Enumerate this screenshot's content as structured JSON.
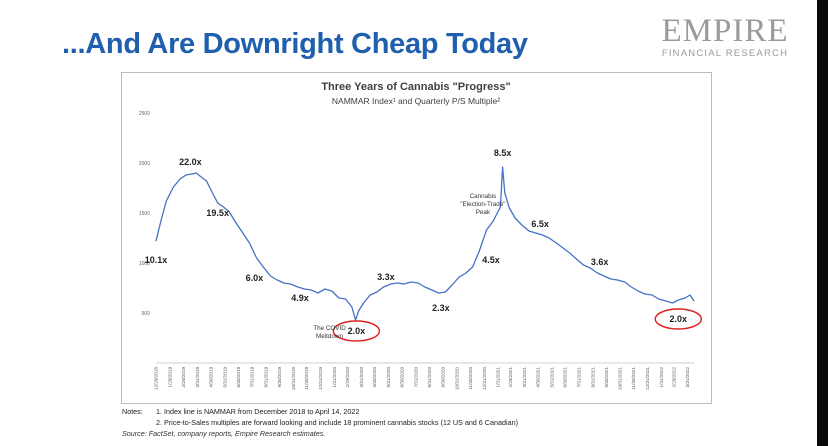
{
  "slide": {
    "title": "...And Are Downright Cheap Today",
    "brand_name": "EMPIRE",
    "brand_sub": "FINANCIAL RESEARCH",
    "notes_label": "Notes:",
    "notes": [
      "1. Index line is NAMMAR from December 2018 to April 14, 2022",
      "2. Price-to-Sales multiples are forward looking and include 18 prominent cannabis stocks (12 US and 6 Canadian)"
    ],
    "source": "Source: FactSet, company reports, Empire Research estimates."
  },
  "chart_data": {
    "type": "line",
    "title": "Three Years of Cannabis \"Progress\"",
    "subtitle": "NAMMAR Index¹ and Quarterly P/S Multiple²",
    "ylim": [
      0,
      2500
    ],
    "yticks": [
      500,
      1000,
      1500,
      2000,
      2500
    ],
    "xlim": [
      "2018-12-28",
      "2022-04-14"
    ],
    "xticks": [
      "12/28/2018",
      "1/28/2019",
      "2/28/2019",
      "3/31/2019",
      "4/30/2019",
      "5/31/2019",
      "6/30/2019",
      "7/31/2019",
      "8/31/2019",
      "9/30/2019",
      "10/31/2019",
      "11/30/2019",
      "12/31/2019",
      "1/31/2020",
      "2/29/2020",
      "3/31/2020",
      "4/30/2020",
      "5/31/2020",
      "6/30/2020",
      "7/31/2020",
      "8/31/2020",
      "9/30/2020",
      "10/31/2020",
      "11/30/2020",
      "12/31/2020",
      "1/31/2021",
      "2/28/2021",
      "3/31/2021",
      "4/30/2021",
      "5/31/2021",
      "6/30/2021",
      "7/31/2021",
      "8/31/2021",
      "9/30/2021",
      "10/31/2021",
      "11/30/2021",
      "12/31/2021",
      "1/31/2022",
      "2/28/2022",
      "3/31/2022"
    ],
    "series": [
      {
        "color": "#4472c4",
        "x": [
          "2018-12-28",
          "2019-01-08",
          "2019-01-20",
          "2019-02-05",
          "2019-02-20",
          "2019-03-05",
          "2019-03-18",
          "2019-03-28",
          "2019-04-08",
          "2019-04-20",
          "2019-05-01",
          "2019-05-15",
          "2019-05-28",
          "2019-06-10",
          "2019-06-25",
          "2019-07-10",
          "2019-07-25",
          "2019-08-10",
          "2019-08-25",
          "2019-09-10",
          "2019-09-25",
          "2019-10-10",
          "2019-10-25",
          "2019-11-10",
          "2019-11-25",
          "2019-12-10",
          "2019-12-25",
          "2020-01-10",
          "2020-01-25",
          "2020-02-10",
          "2020-02-25",
          "2020-03-10",
          "2020-03-18",
          "2020-03-25",
          "2020-04-05",
          "2020-04-20",
          "2020-05-05",
          "2020-05-20",
          "2020-06-05",
          "2020-06-20",
          "2020-07-05",
          "2020-07-20",
          "2020-08-05",
          "2020-08-20",
          "2020-09-05",
          "2020-09-20",
          "2020-10-05",
          "2020-10-20",
          "2020-11-05",
          "2020-11-20",
          "2020-12-05",
          "2020-12-20",
          "2021-01-05",
          "2021-01-20",
          "2021-02-05",
          "2021-02-10",
          "2021-02-15",
          "2021-02-25",
          "2021-03-10",
          "2021-03-25",
          "2021-04-10",
          "2021-04-25",
          "2021-05-10",
          "2021-05-25",
          "2021-06-10",
          "2021-06-25",
          "2021-07-10",
          "2021-07-25",
          "2021-08-10",
          "2021-08-25",
          "2021-09-10",
          "2021-09-25",
          "2021-10-10",
          "2021-10-25",
          "2021-11-10",
          "2021-11-25",
          "2021-12-10",
          "2021-12-25",
          "2022-01-10",
          "2022-01-25",
          "2022-02-10",
          "2022-02-25",
          "2022-03-10",
          "2022-03-25",
          "2022-04-05",
          "2022-04-14"
        ],
        "y": [
          1220,
          1420,
          1620,
          1760,
          1840,
          1880,
          1890,
          1900,
          1860,
          1820,
          1720,
          1600,
          1560,
          1510,
          1400,
          1300,
          1200,
          1050,
          960,
          870,
          830,
          800,
          790,
          760,
          740,
          730,
          700,
          740,
          720,
          650,
          640,
          560,
          430,
          520,
          600,
          680,
          710,
          760,
          790,
          800,
          790,
          810,
          800,
          760,
          730,
          700,
          710,
          780,
          860,
          900,
          960,
          1120,
          1330,
          1420,
          1560,
          1960,
          1700,
          1550,
          1450,
          1380,
          1320,
          1300,
          1280,
          1250,
          1200,
          1150,
          1100,
          1040,
          980,
          950,
          900,
          870,
          840,
          830,
          810,
          760,
          720,
          690,
          680,
          640,
          620,
          600,
          630,
          650,
          680,
          620
        ]
      }
    ],
    "annotations": [
      {
        "text": "10.1x",
        "x": "2018-12-28",
        "y": 1000
      },
      {
        "text": "22.0x",
        "x": "2019-03-15",
        "y": 1980
      },
      {
        "text": "19.5x",
        "x": "2019-05-15",
        "y": 1470
      },
      {
        "text": "6.0x",
        "x": "2019-08-05",
        "y": 820
      },
      {
        "text": "4.9x",
        "x": "2019-11-15",
        "y": 620
      },
      {
        "text": "3.3x",
        "x": "2020-05-25",
        "y": 830
      },
      {
        "text": "2.3x",
        "x": "2020-09-25",
        "y": 520
      },
      {
        "text": "4.5x",
        "x": "2021-01-15",
        "y": 1000
      },
      {
        "text": "8.5x",
        "x": "2021-02-10",
        "y": 2070
      },
      {
        "text": "6.5x",
        "x": "2021-05-05",
        "y": 1360
      },
      {
        "text": "3.6x",
        "x": "2021-09-15",
        "y": 980
      },
      {
        "text": "2.0x",
        "x": "2020-03-20",
        "y": 290,
        "circled": true
      },
      {
        "text": "2.0x",
        "x": "2022-03-10",
        "y": 410,
        "circled": true
      }
    ],
    "callouts": [
      {
        "lines": [
          "The COVID",
          "Meltdown"
        ],
        "x": "2020-01-20",
        "y": 330
      },
      {
        "lines": [
          "Cannabis",
          "\"Election-Trade\"",
          "Peak"
        ],
        "x": "2020-12-28",
        "y": 1650
      }
    ],
    "grid": false,
    "legend": "none"
  }
}
